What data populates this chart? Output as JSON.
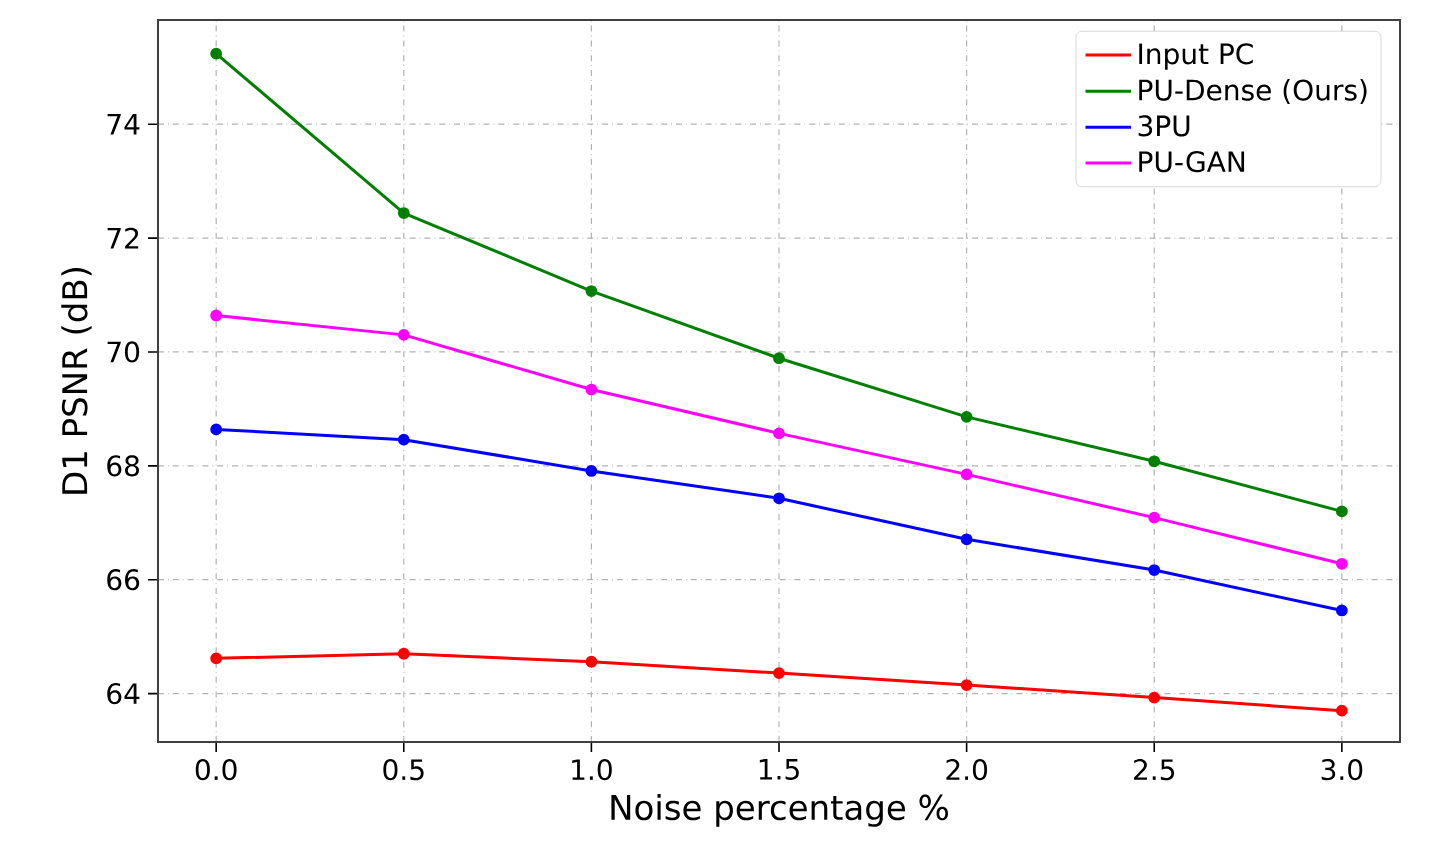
{
  "chart_data": {
    "type": "line",
    "xlabel": "Noise percentage %",
    "ylabel": "D1 PSNR (dB)",
    "x": [
      0.0,
      0.5,
      1.0,
      1.5,
      2.0,
      2.5,
      3.0
    ],
    "series": [
      {
        "name": "Input PC",
        "color": "#ff0000",
        "values": [
          64.62,
          64.7,
          64.56,
          64.36,
          64.15,
          63.93,
          63.7
        ]
      },
      {
        "name": "PU-Dense (Ours)",
        "color": "#008000",
        "values": [
          75.24,
          72.44,
          71.07,
          69.89,
          68.86,
          68.08,
          67.2
        ]
      },
      {
        "name": "3PU",
        "color": "#0000ff",
        "values": [
          68.64,
          68.46,
          67.91,
          67.43,
          66.71,
          66.17,
          65.46
        ]
      },
      {
        "name": "PU-GAN",
        "color": "#ff00ff",
        "values": [
          70.64,
          70.3,
          69.34,
          68.57,
          67.85,
          67.09,
          66.28
        ]
      }
    ],
    "xlim": [
      -0.155,
      3.155
    ],
    "ylim": [
      63.15,
      75.83
    ],
    "xticks": [
      {
        "value": 0,
        "label": "0.0"
      },
      {
        "value": 0.5,
        "label": "0.5"
      },
      {
        "value": 1,
        "label": "1.0"
      },
      {
        "value": 1.5,
        "label": "1.5"
      },
      {
        "value": 2,
        "label": "2.0"
      },
      {
        "value": 2.5,
        "label": "2.5"
      },
      {
        "value": 3,
        "label": "3.0"
      }
    ],
    "yticks": [
      64,
      66,
      68,
      70,
      72,
      74
    ],
    "grid": true,
    "legend": "top right",
    "marker": "circle",
    "line_style": "solid"
  }
}
